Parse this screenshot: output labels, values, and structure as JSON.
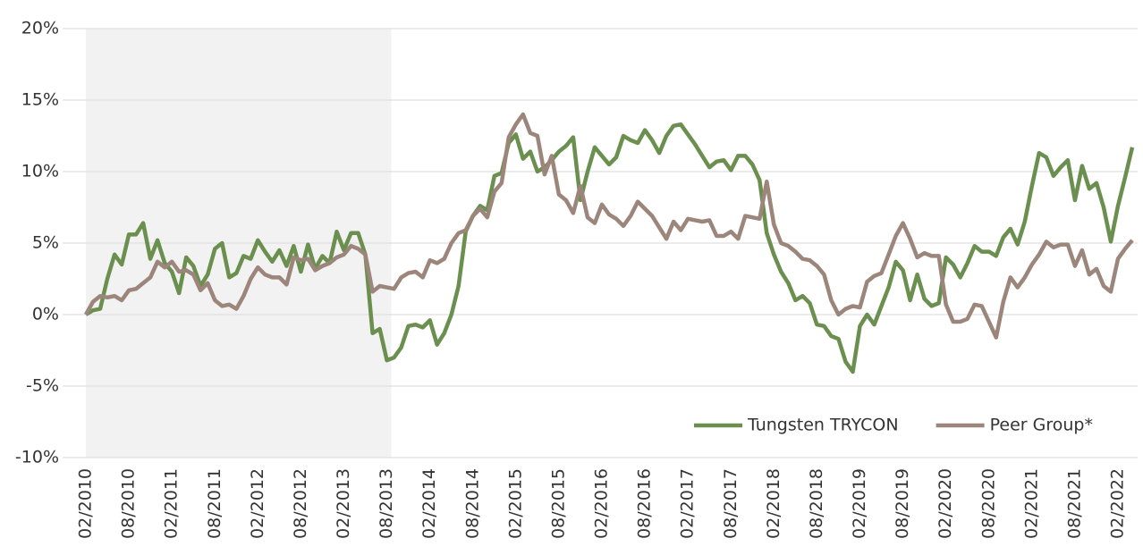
{
  "chart_data": {
    "type": "line",
    "categories": [
      "02/2010",
      null,
      null,
      null,
      null,
      null,
      "08/2010",
      null,
      null,
      null,
      null,
      null,
      "02/2011",
      null,
      null,
      null,
      null,
      null,
      "08/2011",
      null,
      null,
      null,
      null,
      null,
      "02/2012",
      null,
      null,
      null,
      null,
      null,
      "08/2012",
      null,
      null,
      null,
      null,
      null,
      "02/2013",
      null,
      null,
      null,
      null,
      null,
      "08/2013",
      null,
      null,
      null,
      null,
      null,
      "02/2014",
      null,
      null,
      null,
      null,
      null,
      "08/2014",
      null,
      null,
      null,
      null,
      null,
      "02/2015",
      null,
      null,
      null,
      null,
      null,
      "08/2015",
      null,
      null,
      null,
      null,
      null,
      "02/2016",
      null,
      null,
      null,
      null,
      null,
      "08/2016",
      null,
      null,
      null,
      null,
      null,
      "02/2017",
      null,
      null,
      null,
      null,
      null,
      "08/2017",
      null,
      null,
      null,
      null,
      null,
      "02/2018",
      null,
      null,
      null,
      null,
      null,
      "08/2018",
      null,
      null,
      null,
      null,
      null,
      "02/2019",
      null,
      null,
      null,
      null,
      null,
      "08/2019",
      null,
      null,
      null,
      null,
      null,
      "02/2020",
      null,
      null,
      null,
      null,
      null,
      "08/2020",
      null,
      null,
      null,
      null,
      null,
      "02/2021",
      null,
      null,
      null,
      null,
      null,
      "08/2021",
      null,
      null,
      null,
      null,
      null,
      "02/2022",
      null,
      null
    ],
    "series": [
      {
        "name": "Tungsten TRYCON",
        "color": "#6b8f4e",
        "values": [
          0,
          0.3,
          0.4,
          2.5,
          4.2,
          3.5,
          5.6,
          5.6,
          6.4,
          3.9,
          5.2,
          3.6,
          3.0,
          1.5,
          4.0,
          3.4,
          2.0,
          2.8,
          4.6,
          5.0,
          2.6,
          2.9,
          4.1,
          3.9,
          5.2,
          4.4,
          3.7,
          4.5,
          3.4,
          4.8,
          3.0,
          4.9,
          3.2,
          4.1,
          3.6,
          5.8,
          4.5,
          5.7,
          5.7,
          4.2,
          -1.3,
          -1.0,
          -3.2,
          -3.0,
          -2.3,
          -0.8,
          -0.7,
          -0.9,
          -0.4,
          -2.1,
          -1.3,
          0.0,
          2.0,
          5.8,
          6.9,
          7.6,
          7.3,
          9.7,
          9.9,
          12.0,
          12.6,
          10.9,
          11.4,
          10.0,
          10.3,
          10.8,
          11.4,
          11.8,
          12.4,
          8.0,
          10.0,
          11.7,
          11.1,
          10.5,
          11.0,
          12.5,
          12.2,
          12.0,
          12.9,
          12.2,
          11.3,
          12.5,
          13.2,
          13.3,
          12.6,
          11.9,
          11.1,
          10.3,
          10.7,
          10.8,
          10.1,
          11.1,
          11.1,
          10.5,
          9.4,
          5.7,
          4.2,
          3.0,
          2.2,
          1.0,
          1.3,
          0.8,
          -0.7,
          -0.8,
          -1.5,
          -1.7,
          -3.3,
          -4.0,
          -0.8,
          0.0,
          -0.7,
          0.6,
          1.9,
          3.7,
          3.1,
          1.0,
          2.8,
          1.1,
          0.6,
          0.8,
          4.0,
          3.5,
          2.6,
          3.6,
          4.8,
          4.4,
          4.4,
          4.1,
          5.4,
          6.0,
          4.9,
          6.5,
          9.0,
          11.3,
          11.0,
          9.7,
          10.3,
          10.8,
          8.0,
          10.4,
          8.8,
          9.2,
          7.5,
          5.1,
          7.6,
          9.6,
          11.7
        ]
      },
      {
        "name": "Peer Group*",
        "color": "#9c857a",
        "values": [
          0,
          0.9,
          1.3,
          1.2,
          1.3,
          1.0,
          1.7,
          1.8,
          2.2,
          2.6,
          3.7,
          3.3,
          3.7,
          3.0,
          3.1,
          2.8,
          1.7,
          2.2,
          1.0,
          0.6,
          0.7,
          0.4,
          1.3,
          2.5,
          3.3,
          2.8,
          2.6,
          2.6,
          2.1,
          4.0,
          3.8,
          3.9,
          3.1,
          3.4,
          3.6,
          4.0,
          4.2,
          4.8,
          4.6,
          4.2,
          1.6,
          2.0,
          1.9,
          1.8,
          2.6,
          2.9,
          3.0,
          2.6,
          3.8,
          3.6,
          3.9,
          5.0,
          5.7,
          5.9,
          6.9,
          7.4,
          6.8,
          8.6,
          9.2,
          12.4,
          13.3,
          14.0,
          12.7,
          12.5,
          9.8,
          11.1,
          8.4,
          8.0,
          7.1,
          9.0,
          6.8,
          6.4,
          7.7,
          7.0,
          6.7,
          6.2,
          6.9,
          7.9,
          7.4,
          6.9,
          6.1,
          5.3,
          6.5,
          5.9,
          6.7,
          6.6,
          6.5,
          6.6,
          5.5,
          5.5,
          5.8,
          5.3,
          6.9,
          6.8,
          6.7,
          9.3,
          6.3,
          5.0,
          4.8,
          4.4,
          3.9,
          3.8,
          3.4,
          2.8,
          1.0,
          0.0,
          0.4,
          0.6,
          0.5,
          2.3,
          2.7,
          2.9,
          4.2,
          5.5,
          6.4,
          5.3,
          4.0,
          4.3,
          4.1,
          4.1,
          0.7,
          -0.5,
          -0.5,
          -0.3,
          0.7,
          0.6,
          -0.5,
          -1.6,
          0.9,
          2.6,
          1.9,
          2.6,
          3.5,
          4.2,
          5.1,
          4.7,
          4.9,
          4.9,
          3.4,
          4.5,
          2.8,
          3.2,
          2.0,
          1.6,
          3.9,
          4.6,
          5.2
        ]
      }
    ],
    "ylim": [
      -10,
      20
    ],
    "yticks": [
      {
        "value": -10,
        "label": "-10%"
      },
      {
        "value": -5,
        "label": "-5%"
      },
      {
        "value": 0,
        "label": "0%"
      },
      {
        "value": 5,
        "label": "5%"
      },
      {
        "value": 10,
        "label": "10%"
      },
      {
        "value": 15,
        "label": "15%"
      },
      {
        "value": 20,
        "label": "20%"
      }
    ],
    "grid": true,
    "legend": "bottom-right",
    "shaded_range_index": [
      0,
      43
    ],
    "shade_color": "#f2f2f2"
  }
}
